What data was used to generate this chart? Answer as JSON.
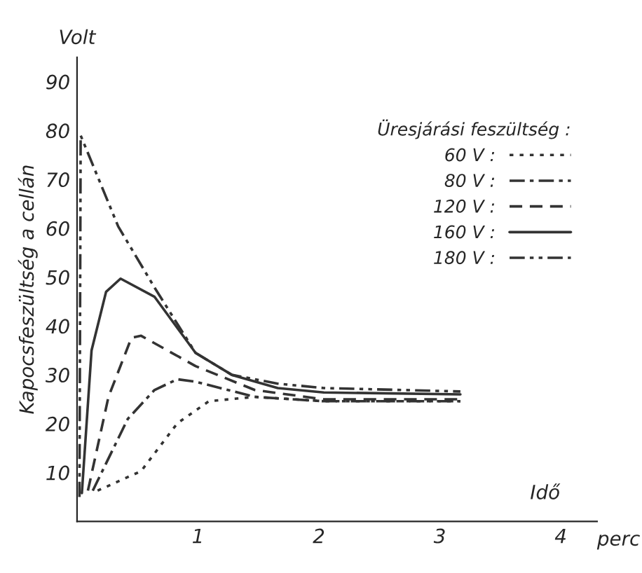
{
  "chart_data": {
    "type": "line",
    "legend_title": "Üresjárási feszültség :",
    "ylabel": "Kapocsfeszültség a cellán",
    "xlabel": "Idő",
    "annotations": [
      "Volt",
      "perc"
    ],
    "xlim": [
      0,
      4.3
    ],
    "ylim": [
      0,
      95
    ],
    "xticks": [
      1,
      2,
      3,
      4
    ],
    "yticks": [
      10,
      20,
      30,
      40,
      50,
      60,
      70,
      80,
      90
    ],
    "grid": false,
    "legend": "top right",
    "marker": "none",
    "series": [
      {
        "name": "60 V :",
        "color": "#333333",
        "line_style": "dotted",
        "x": [
          0.17,
          0.53,
          0.83,
          1.09,
          1.47,
          2.04,
          3.17
        ],
        "values": [
          6.3,
          10.3,
          20.1,
          24.6,
          25.5,
          24.6,
          24.6
        ]
      },
      {
        "name": "80 V :",
        "color": "#333333",
        "line_style": "dashdot",
        "x": [
          0.13,
          0.42,
          0.64,
          0.83,
          0.98,
          1.47,
          2.04,
          3.17
        ],
        "values": [
          6.3,
          21,
          26.9,
          29.1,
          28.6,
          25.5,
          24.6,
          24.6
        ]
      },
      {
        "name": "120 V :",
        "color": "#333333",
        "line_style": "dashed",
        "x": [
          0.09,
          0.26,
          0.45,
          0.53,
          0.98,
          1.47,
          2.04,
          3.17
        ],
        "values": [
          6.3,
          25.5,
          37.6,
          38,
          31.8,
          26.9,
          25,
          25
        ]
      },
      {
        "name": "160 V :",
        "color": "#333333",
        "line_style": "solid",
        "x": [
          0.04,
          0.12,
          0.24,
          0.36,
          0.64,
          0.98,
          1.28,
          1.66,
          2.04,
          3.17
        ],
        "values": [
          5.8,
          35,
          47,
          49.7,
          46,
          34.5,
          30,
          27.3,
          26.4,
          26
        ]
      },
      {
        "name": "180 V :",
        "color": "#333333",
        "line_style": "dashdotdot",
        "x": [
          0.02,
          0.03,
          0.34,
          0.64,
          0.98,
          1.28,
          1.66,
          2.04,
          3.17
        ],
        "values": [
          5,
          79,
          60.4,
          47.9,
          34.5,
          30,
          28.2,
          27.3,
          26.6
        ]
      }
    ]
  }
}
